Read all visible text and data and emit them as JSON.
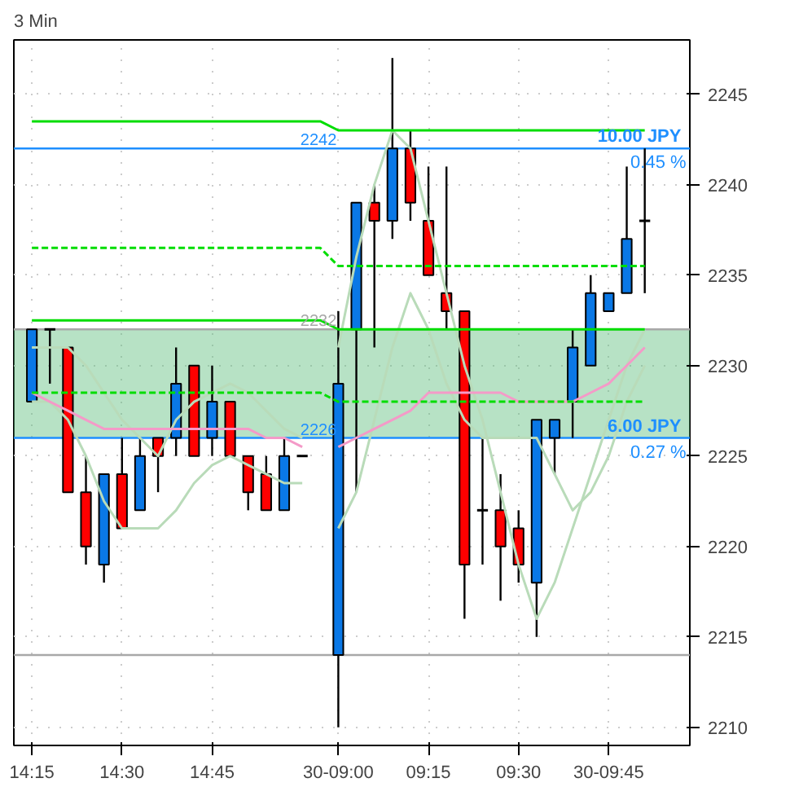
{
  "chart_data": {
    "type": "candlestick",
    "title": "3 Min",
    "categories": [
      "14:15",
      null,
      null,
      null,
      null,
      "14:30",
      null,
      null,
      null,
      null,
      "14:45",
      null,
      null,
      null,
      null,
      null,
      null,
      "30-09:00",
      null,
      null,
      null,
      null,
      "09:15",
      null,
      null,
      null,
      null,
      "09:30",
      null,
      null,
      null,
      null,
      "30-09:45",
      null,
      null
    ],
    "ohlc": [
      [
        2228,
        2232,
        2228,
        2232
      ],
      [
        2232,
        2232,
        2229,
        2232
      ],
      [
        2231,
        2231,
        2223,
        2223
      ],
      [
        2223,
        2225,
        2219,
        2220
      ],
      [
        2219,
        2224,
        2218,
        2224
      ],
      [
        2224,
        2226,
        2221,
        2221
      ],
      [
        2222,
        2226,
        2222,
        2225
      ],
      [
        2226,
        2226,
        2223,
        2225
      ],
      [
        2226,
        2231,
        2225,
        2229
      ],
      [
        2230,
        2230,
        2225,
        2225
      ],
      [
        2226,
        2230,
        2225,
        2228
      ],
      [
        2228,
        2228,
        2225,
        2225
      ],
      [
        2225,
        2225,
        2222,
        2223
      ],
      [
        2224,
        2225,
        2222,
        2222
      ],
      [
        2222,
        2226,
        2222,
        2225
      ],
      [
        2225,
        2225,
        2225,
        2225
      ],
      null,
      [
        2214,
        2233,
        2210,
        2229
      ],
      [
        2232,
        2239,
        2223,
        2239
      ],
      [
        2239,
        2240,
        2231,
        2238
      ],
      [
        2238,
        2247,
        2237,
        2242
      ],
      [
        2242,
        2243,
        2238,
        2239
      ],
      [
        2238,
        2241,
        2235,
        2235
      ],
      [
        2234,
        2241,
        2232,
        2233
      ],
      [
        2233,
        2233,
        2216,
        2219
      ],
      [
        2222,
        2226,
        2219,
        2222
      ],
      [
        2222,
        2224,
        2217,
        2220
      ],
      [
        2221,
        2222,
        2218,
        2219
      ],
      [
        2218,
        2227,
        2215,
        2227
      ],
      [
        2226,
        2227,
        2224,
        2227
      ],
      [
        2228,
        2232,
        2226,
        2231
      ],
      [
        2230,
        2235,
        2230,
        2234
      ],
      [
        2233,
        2234,
        2233,
        2234
      ],
      [
        2234,
        2241,
        2234,
        2237
      ],
      [
        2238,
        2242,
        2234,
        2238
      ]
    ],
    "colors": [
      "#0a78e6",
      "#000000",
      "#ff0000",
      "#ff0000",
      "#0a78e6",
      "#ff0000",
      "#0a78e6",
      "#ff0000",
      "#0a78e6",
      "#ff0000",
      "#0a78e6",
      "#ff0000",
      "#ff0000",
      "#ff0000",
      "#0a78e6",
      "#000000",
      null,
      "#0a78e6",
      "#0a78e6",
      "#ff0000",
      "#0a78e6",
      "#ff0000",
      "#ff0000",
      "#ff0000",
      "#ff0000",
      "#000000",
      "#ff0000",
      "#ff0000",
      "#0a78e6",
      "#0a78e6",
      "#0a78e6",
      "#0a78e6",
      "#0a78e6",
      "#0a78e6",
      "#000000"
    ],
    "series": [
      {
        "type": "line",
        "color": "#b9dbb9",
        "line_style": "solid",
        "values": [
          2231,
          2231,
          2231,
          2230,
          2228.5,
          2227,
          2226,
          2225,
          2227,
          2228,
          2228.5,
          2229,
          2228.5,
          2227.5,
          2226.5,
          2226,
          null,
          2231,
          2236,
          2240,
          2243,
          2242,
          2238,
          2234,
          2230,
          2227,
          2223,
          2219,
          2216,
          2218,
          2221,
          2224,
          2227,
          2230,
          2232
        ]
      },
      {
        "type": "line",
        "color": "#b9dbb9",
        "line_style": "solid",
        "values": [
          2228,
          2228,
          2227,
          2225,
          2222.5,
          2221,
          2221,
          2221,
          2222,
          2223.5,
          2224.5,
          2225,
          2224.5,
          2224,
          2223.5,
          2223.5,
          null,
          2221,
          2223,
          2227,
          2231,
          2234,
          2232,
          2229,
          2227,
          2226,
          2226,
          2226,
          2226,
          2224,
          2222,
          2223,
          2225,
          2228,
          2230
        ]
      },
      {
        "type": "line",
        "color": "#f49ac8",
        "line_style": "solid",
        "values": [
          2228.5,
          2228,
          2227.5,
          2227,
          2226.5,
          2226.5,
          2226.5,
          2226.5,
          2226.5,
          2226.5,
          2226.5,
          2226.5,
          2226.5,
          2226,
          2226,
          2225.5,
          null,
          2225.5,
          2226,
          2226.5,
          2227,
          2227.5,
          2228.5,
          2228.5,
          2228.5,
          2228.5,
          2228.5,
          2228,
          2228,
          2228,
          2228,
          2228.5,
          2229,
          2230,
          2231
        ]
      },
      {
        "type": "line",
        "color": "#00dd00",
        "line_style": "solid",
        "values": [
          2243.5,
          2243.5,
          2243.5,
          2243.5,
          2243.5,
          2243.5,
          2243.5,
          2243.5,
          2243.5,
          2243.5,
          2243.5,
          2243.5,
          2243.5,
          2243.5,
          2243.5,
          2243.5,
          2243.5,
          2243,
          2243,
          2243,
          2243,
          2243,
          2243,
          2243,
          2243,
          2243,
          2243,
          2243,
          2243,
          2243,
          2243,
          2243,
          2243,
          2243,
          2243
        ]
      },
      {
        "type": "line",
        "color": "#00dd00",
        "line_style": "dashed",
        "values": [
          2236.5,
          2236.5,
          2236.5,
          2236.5,
          2236.5,
          2236.5,
          2236.5,
          2236.5,
          2236.5,
          2236.5,
          2236.5,
          2236.5,
          2236.5,
          2236.5,
          2236.5,
          2236.5,
          2236.5,
          2235.5,
          2235.5,
          2235.5,
          2235.5,
          2235.5,
          2235.5,
          2235.5,
          2235.5,
          2235.5,
          2235.5,
          2235.5,
          2235.5,
          2235.5,
          2235.5,
          2235.5,
          2235.5,
          2235.5,
          2235.5
        ]
      },
      {
        "type": "line",
        "color": "#00dd00",
        "line_style": "solid",
        "values": [
          2232.5,
          2232.5,
          2232.5,
          2232.5,
          2232.5,
          2232.5,
          2232.5,
          2232.5,
          2232.5,
          2232.5,
          2232.5,
          2232.5,
          2232.5,
          2232.5,
          2232.5,
          2232.5,
          2232.5,
          2232,
          2232,
          2232,
          2232,
          2232,
          2232,
          2232,
          2232,
          2232,
          2232,
          2232,
          2232,
          2232,
          2232,
          2232,
          2232,
          2232,
          2232
        ]
      },
      {
        "type": "line",
        "color": "#00dd00",
        "line_style": "dashed",
        "values": [
          2228.5,
          2228.5,
          2228.5,
          2228.5,
          2228.5,
          2228.5,
          2228.5,
          2228.5,
          2228.5,
          2228.5,
          2228.5,
          2228.5,
          2228.5,
          2228.5,
          2228.5,
          2228.5,
          2228.5,
          2228,
          2228,
          2228,
          2228,
          2228,
          2228,
          2228,
          2228,
          2228,
          2228,
          2228,
          2228,
          2228,
          2228,
          2228,
          2228,
          2228,
          2228
        ]
      }
    ],
    "ylim": [
      2209,
      2248
    ],
    "yticks": [
      2210,
      2215,
      2220,
      2225,
      2230,
      2235,
      2240,
      2245
    ],
    "ref_lines": [
      {
        "axis": "y",
        "value": 2242,
        "label": "2242",
        "color": "#1e8fff"
      },
      {
        "axis": "y",
        "value": 2232,
        "label": "2232",
        "color": "#a8a8a8"
      },
      {
        "axis": "y",
        "value": 2226,
        "label": "2226",
        "color": "#1e8fff"
      },
      {
        "axis": "y",
        "value": 2214,
        "color": "#a8a8a8"
      }
    ],
    "bands": [
      {
        "axis": "y",
        "from": 2226,
        "to": 2232,
        "color": "#5fbf7f"
      }
    ],
    "annotations": [
      {
        "text": "10.00  JPY\n0.45 %",
        "y": 2242
      },
      {
        "text": "6.00  JPY\n0.27 %",
        "y": 2226
      }
    ],
    "grid": true
  }
}
